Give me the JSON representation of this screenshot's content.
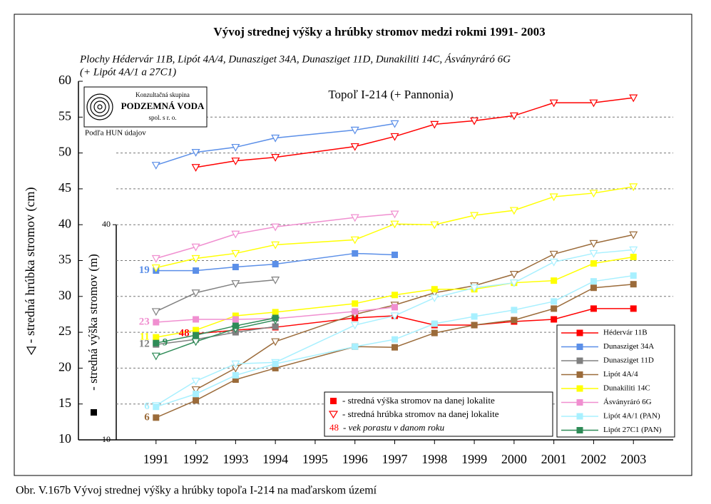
{
  "chart_data": {
    "type": "line",
    "title": "Vývoj strednej výšky a hrúbky stromov medzi rokmi 1991- 2003",
    "subtitle": [
      "Plochy Hédervár 11B, Lipót 4A/4, Dunasziget 34A, Dunasziget 11D, Dunakiliti 14C, Ásványráró 6G",
      "(+ Lipót 4A/1 a 27C1)"
    ],
    "plot_title": "Topoľ I-214 (+ Pannonia)",
    "logo": {
      "line1": "Konzultačná skupina",
      "line2": "PODZEMNÁ VODA",
      "line3": "spol. s r. o."
    },
    "source": "Podľa HUN údajov",
    "ylabel": "- stredná hrúbka stromov (cm)",
    "y2label": "- stredná výška stromov (m)",
    "caption": "Obr. V.167b Vývoj strednej výšky a hrúbky topoľa I-214 na maďarskom území",
    "key": {
      "height": "- stredná výška stromov na danej lokalite",
      "diameter": "- stredná hrúbka stromov na danej lokalite",
      "age_example": "48",
      "age": "- vek porastu v danom roku"
    },
    "xlim": [
      1990,
      2004
    ],
    "xticks": [
      1991,
      1992,
      1993,
      1994,
      1995,
      1996,
      1997,
      1998,
      1999,
      2000,
      2001,
      2002,
      2003
    ],
    "ylim": [
      10,
      60
    ],
    "yticks": [
      10,
      15,
      20,
      25,
      30,
      35,
      40,
      45,
      50,
      55,
      60
    ],
    "y2lim": [
      10,
      40
    ],
    "y2ticks": [
      10,
      40
    ],
    "grid": true,
    "series": [
      {
        "name": "Hédervár 11B",
        "color": "#ff0000",
        "height_x": [
          1992,
          1993,
          1994,
          1996,
          1997,
          1998,
          1999,
          2000,
          2001,
          2002,
          2003
        ],
        "height": [
          24.8,
          25.3,
          25.7,
          27.0,
          27.3,
          26.0,
          26.0,
          26.5,
          26.8,
          28.3,
          28.3
        ],
        "diameter_x": [
          1992,
          1993,
          1994,
          1996,
          1997,
          1998,
          1999,
          2000,
          2001,
          2002,
          2003
        ],
        "diameter": [
          48.0,
          48.9,
          49.4,
          50.9,
          52.3,
          54.0,
          54.5,
          55.2,
          57.0,
          57.0,
          57.7
        ],
        "age_label": "48"
      },
      {
        "name": "Dunasziget 34A",
        "color": "#5b8fe8",
        "height_x": [
          1991,
          1992,
          1993,
          1994,
          1996,
          1997
        ],
        "height": [
          33.6,
          33.6,
          34.1,
          34.5,
          36.0,
          35.8
        ],
        "diameter_x": [
          1991,
          1992,
          1993,
          1994,
          1996,
          1997
        ],
        "diameter": [
          48.3,
          50.1,
          50.8,
          52.1,
          53.2,
          54.1
        ],
        "age_label": "19"
      },
      {
        "name": "Dunasziget 11D",
        "color": "#808080",
        "height_x": [
          1991,
          1992,
          1993,
          1994
        ],
        "height": [
          23.3,
          24.0,
          25.0,
          25.8
        ],
        "diameter_x": [
          1991,
          1992,
          1993,
          1994
        ],
        "diameter": [
          27.9,
          30.5,
          31.8,
          32.3
        ],
        "age_label": "12"
      },
      {
        "name": "Lipót 4A/4",
        "color": "#9b6b3a",
        "height_x": [
          1991,
          1992,
          1993,
          1994,
          1996,
          1997,
          1998,
          1999,
          2000,
          2001,
          2002,
          2003
        ],
        "height": [
          13.1,
          15.5,
          18.4,
          20.0,
          23.0,
          22.9,
          24.9,
          26.0,
          26.7,
          28.3,
          31.2,
          31.7
        ],
        "diameter_x": [
          1992,
          1993,
          1994,
          1996,
          1997,
          1998,
          1999,
          2000,
          2001,
          2002,
          2003
        ],
        "diameter": [
          17.0,
          20.0,
          23.7,
          27.5,
          28.8,
          30.5,
          31.5,
          33.1,
          35.9,
          37.4,
          38.6
        ],
        "age_label": "6"
      },
      {
        "name": "Dunakiliti 14C",
        "color": "#ffff00",
        "height_x": [
          1991,
          1992,
          1993,
          1994,
          1996,
          1997,
          1998,
          1999,
          2000,
          2001,
          2002,
          2003
        ],
        "height": [
          24.3,
          25.3,
          27.3,
          27.8,
          29.0,
          30.2,
          31.0,
          31.0,
          31.9,
          32.2,
          34.6,
          35.5
        ],
        "diameter_x": [
          1991,
          1992,
          1993,
          1994,
          1996,
          1997,
          1998,
          1999,
          2000,
          2001,
          2002,
          2003
        ],
        "diameter": [
          34.0,
          35.3,
          36.0,
          37.2,
          37.9,
          40.1,
          40.0,
          41.3,
          42.0,
          43.9,
          44.4,
          45.3
        ],
        "age_label": "11"
      },
      {
        "name": "Ásványráró 6G",
        "color": "#f08fd0",
        "height_x": [
          1991,
          1992,
          1993,
          1994,
          1996,
          1997
        ],
        "height": [
          26.4,
          26.8,
          26.8,
          26.9,
          27.9,
          28.5
        ],
        "diameter_x": [
          1991,
          1992,
          1993,
          1994,
          1996,
          1997
        ],
        "diameter": [
          35.3,
          36.9,
          38.7,
          39.7,
          41.0,
          41.5
        ],
        "age_label": "23"
      },
      {
        "name": "Lipót 4A/1 (PAN)",
        "color": "#a8f0ff",
        "height_x": [
          1991,
          1992,
          1993,
          1994,
          1996,
          1997,
          1998,
          1999,
          2000,
          2001,
          2002,
          2003
        ],
        "height": [
          14.6,
          16.4,
          19.0,
          20.6,
          23.0,
          24.0,
          26.2,
          27.2,
          28.1,
          29.3,
          32.1,
          32.9
        ],
        "diameter_x": [
          1991,
          1992,
          1993,
          1994,
          1996,
          1997,
          1998,
          1999,
          2000,
          2001,
          2002,
          2003
        ],
        "diameter": [
          14.8,
          18.2,
          20.6,
          20.8,
          26.0,
          27.3,
          29.8,
          31.2,
          31.9,
          34.8,
          36.0,
          36.5
        ],
        "age_label": "6"
      },
      {
        "name": "Lipót 27C1 (PAN)",
        "color": "#2e8b57",
        "height_x": [
          1991,
          1992,
          1993,
          1994
        ],
        "height": [
          23.5,
          24.6,
          25.9,
          27.0
        ],
        "diameter_x": [
          1991,
          1992,
          1993,
          1994
        ],
        "diameter": [
          21.7,
          23.7,
          25.5,
          26.7
        ],
        "age_label": "9",
        "age_label_position": "right"
      }
    ]
  }
}
